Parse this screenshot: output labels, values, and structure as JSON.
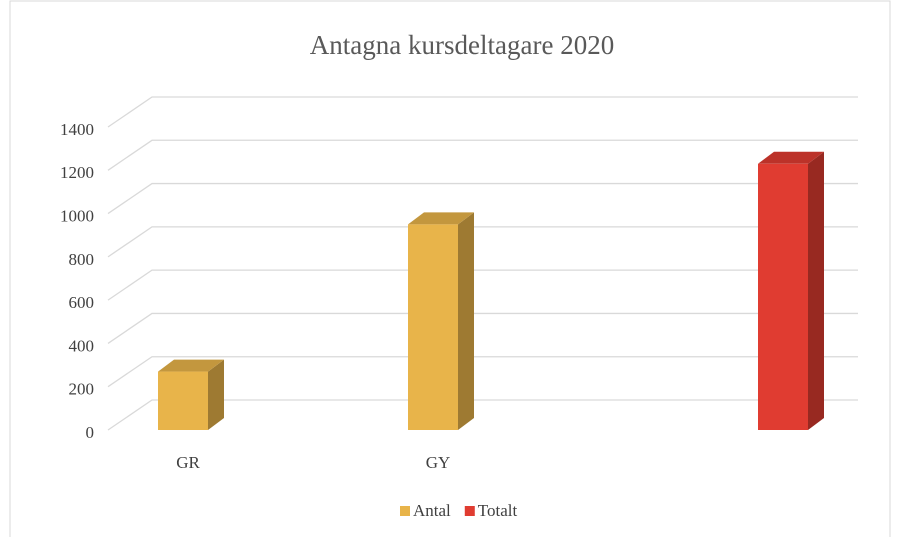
{
  "chart_data": {
    "type": "bar3d",
    "title": "Antagna kursdeltagare 2020",
    "categories": [
      "GR",
      "GY",
      null
    ],
    "series": [
      {
        "name": "Antal",
        "color": "#e8b44a",
        "values": [
          270,
          950,
          null
        ]
      },
      {
        "name": "Totalt",
        "color": "#e03c31",
        "values": [
          null,
          null,
          1230
        ]
      }
    ],
    "ylim": [
      0,
      1400
    ],
    "yticks": [
      0,
      200,
      400,
      600,
      800,
      1000,
      1200,
      1400
    ],
    "grid": true,
    "legend": "bottom"
  }
}
